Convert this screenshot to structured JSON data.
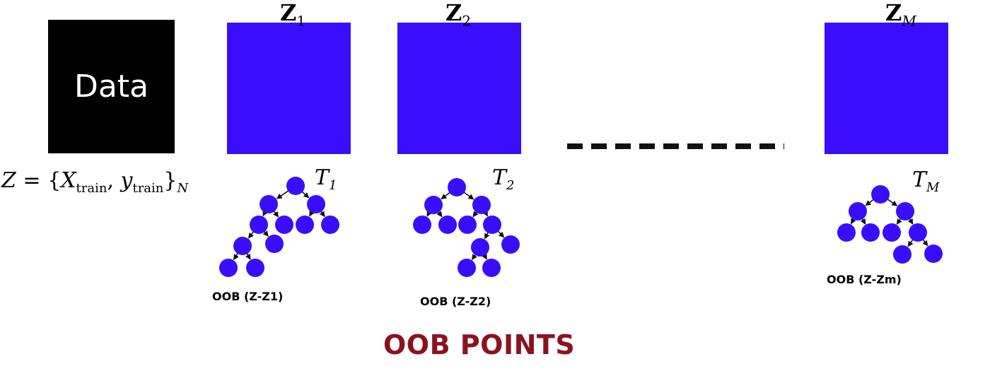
{
  "data_box": {
    "label": "Data"
  },
  "formula": {
    "lhs": "Z",
    "x": "X",
    "x_sub": "train",
    "y": "y",
    "y_sub": "train",
    "outer_sub": "N"
  },
  "samples": [
    {
      "symbol": "Z",
      "sub": "1",
      "color": "#3a0dff"
    },
    {
      "symbol": "Z",
      "sub": "2",
      "color": "#3a0dff"
    },
    {
      "symbol": "Z",
      "sub": "M",
      "color": "#3a0dff"
    }
  ],
  "trees": [
    {
      "symbol": "T",
      "sub": "1",
      "oob_label": "OOB (Z-Z1)"
    },
    {
      "symbol": "T",
      "sub": "2",
      "oob_label": "OOB (Z-Z2)"
    },
    {
      "symbol": "T",
      "sub": "M",
      "oob_label": "OOB (Z-Zm)"
    }
  ],
  "node_color": "#3a0dff",
  "title": {
    "text": "OOB POINTS",
    "color": "#8b1320"
  }
}
